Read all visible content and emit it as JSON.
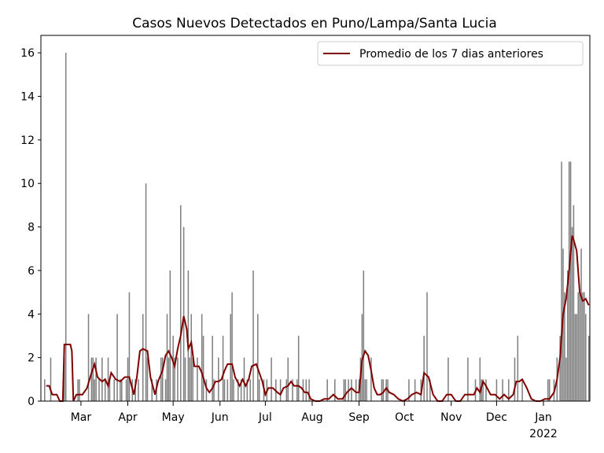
{
  "chart_data": {
    "type": "bar",
    "title": "Casos Nuevos Detectados en Puno/Lampa/Santa Lucia",
    "xlim": [
      32.5,
      395.7
    ],
    "xticks": [
      {
        "value": 59,
        "label": "Mar"
      },
      {
        "value": 90,
        "label": "Apr"
      },
      {
        "value": 120,
        "label": "May"
      },
      {
        "value": 151,
        "label": "Jun"
      },
      {
        "value": 181,
        "label": "Jul"
      },
      {
        "value": 212,
        "label": "Aug"
      },
      {
        "value": 243,
        "label": "Sep"
      },
      {
        "value": 273,
        "label": "Oct"
      },
      {
        "value": 304,
        "label": "Nov"
      },
      {
        "value": 334,
        "label": "Dec"
      },
      {
        "value": 365,
        "label": "Jan"
      }
    ],
    "year_label": "2022",
    "ylim": [
      0,
      16.8
    ],
    "yticks": [
      0,
      2,
      4,
      6,
      8,
      10,
      12,
      14,
      16
    ],
    "legend": "upper right",
    "series": [
      {
        "type": "bar",
        "color": "#808080",
        "x": [
          35,
          39,
          48,
          49,
          57,
          58,
          64,
          66,
          67,
          68,
          69,
          71,
          73,
          75,
          77,
          78,
          81,
          83,
          85,
          86,
          89,
          90,
          91,
          93,
          95,
          97,
          100,
          102,
          103,
          106,
          109,
          112,
          113,
          115,
          116,
          117,
          118,
          120,
          121,
          123,
          125,
          127,
          128,
          130,
          131,
          132,
          133,
          136,
          139,
          140,
          142,
          146,
          147,
          150,
          153,
          154,
          156,
          158,
          159,
          160,
          163,
          165,
          167,
          169,
          171,
          173,
          176,
          177,
          180,
          182,
          185,
          188,
          191,
          195,
          196,
          199,
          202,
          203,
          206,
          208,
          210,
          222,
          227,
          233,
          234,
          236,
          238,
          241,
          243,
          244,
          245,
          246,
          247,
          248,
          251,
          258,
          259,
          261,
          262,
          276,
          280,
          284,
          286,
          288,
          290,
          302,
          315,
          320,
          323,
          324,
          325,
          327,
          334,
          338,
          342,
          346,
          348,
          351,
          368,
          369,
          372,
          374,
          376,
          377,
          378,
          379,
          380,
          381,
          382,
          383,
          384,
          385,
          386,
          387,
          388,
          389,
          390,
          391,
          392,
          393,
          395
        ],
        "values": [
          1,
          2,
          2,
          16,
          1,
          1,
          4,
          2,
          2,
          1,
          2,
          1,
          2,
          1,
          2,
          1,
          1,
          4,
          1,
          1,
          1,
          2,
          5,
          1,
          1,
          1,
          4,
          10,
          2,
          1,
          1,
          2,
          2,
          1,
          4,
          2,
          6,
          3,
          2,
          2,
          9,
          8,
          2,
          6,
          2,
          4,
          2,
          2,
          4,
          3,
          1,
          3,
          1,
          2,
          3,
          1,
          1,
          4,
          5,
          1,
          1,
          1,
          2,
          1,
          1,
          6,
          4,
          1,
          1,
          1,
          2,
          1,
          1,
          1,
          2,
          1,
          1,
          3,
          1,
          1,
          1,
          1,
          1,
          1,
          1,
          1,
          1,
          1,
          1,
          2,
          4,
          6,
          1,
          1,
          2,
          1,
          1,
          1,
          1,
          1,
          1,
          1,
          3,
          5,
          1,
          2,
          2,
          1,
          2,
          1,
          1,
          1,
          1,
          1,
          1,
          2,
          3,
          1,
          1,
          1,
          1,
          2,
          3,
          11,
          7,
          5,
          2,
          6,
          11,
          11,
          8,
          9,
          4,
          4,
          5,
          5,
          7,
          5,
          5,
          4,
          3
        ]
      },
      {
        "type": "line",
        "name": "Promedio de los 7 dias anteriores",
        "color": "#800000",
        "x": [
          36,
          38,
          40,
          43,
          45,
          47,
          48,
          52,
          53,
          54,
          56,
          60,
          63,
          66,
          68,
          70,
          73,
          75,
          77,
          79,
          82,
          85,
          88,
          91,
          94,
          96,
          98,
          100,
          103,
          105,
          108,
          110,
          113,
          115,
          117,
          119,
          121,
          123,
          125,
          127,
          129,
          130,
          132,
          134,
          137,
          139,
          142,
          144,
          146,
          148,
          150,
          152,
          154,
          156,
          159,
          161,
          164,
          166,
          168,
          170,
          172,
          175,
          177,
          179,
          181,
          183,
          186,
          189,
          191,
          193,
          196,
          198,
          200,
          203,
          205,
          207,
          209,
          211,
          214,
          217,
          220,
          223,
          226,
          229,
          232,
          235,
          238,
          241,
          243,
          245,
          247,
          249,
          251,
          253,
          255,
          257,
          259,
          261,
          263,
          266,
          269,
          272,
          275,
          278,
          281,
          284,
          286,
          289,
          292,
          295,
          298,
          301,
          304,
          307,
          310,
          313,
          316,
          319,
          321,
          323,
          325,
          327,
          330,
          333,
          336,
          339,
          342,
          345,
          347,
          349,
          351,
          354,
          357,
          360,
          363,
          366,
          369,
          372,
          374,
          376,
          377,
          378,
          380,
          382,
          384,
          385,
          387,
          389,
          391,
          393,
          395
        ],
        "values": [
          0.7,
          0.7,
          0.3,
          0.3,
          0,
          0,
          2.6,
          2.6,
          2.3,
          0,
          0.3,
          0.3,
          0.6,
          1.3,
          1.7,
          1.1,
          0.9,
          1.0,
          0.7,
          1.3,
          1.0,
          0.9,
          1.1,
          1.1,
          0.3,
          1.1,
          2.3,
          2.4,
          2.3,
          1.1,
          0.3,
          0.9,
          1.4,
          2.1,
          2.3,
          2.0,
          1.6,
          2.4,
          3.0,
          3.9,
          3.3,
          2.4,
          2.7,
          1.6,
          1.6,
          1.3,
          0.6,
          0.4,
          0.6,
          0.9,
          0.9,
          1.0,
          1.4,
          1.7,
          1.7,
          1.1,
          0.7,
          1.0,
          0.7,
          1.0,
          1.6,
          1.7,
          1.3,
          0.9,
          0.3,
          0.6,
          0.6,
          0.4,
          0.3,
          0.6,
          0.7,
          0.9,
          0.7,
          0.7,
          0.6,
          0.4,
          0.4,
          0.1,
          0,
          0,
          0.1,
          0.1,
          0.3,
          0.1,
          0.1,
          0.4,
          0.6,
          0.4,
          0.4,
          1.9,
          2.3,
          2.1,
          1.4,
          0.6,
          0.3,
          0.3,
          0.4,
          0.6,
          0.4,
          0.3,
          0.1,
          0,
          0.1,
          0.3,
          0.4,
          0.3,
          1.3,
          1.1,
          0.3,
          0,
          0,
          0.3,
          0.3,
          0,
          0,
          0.3,
          0.3,
          0.3,
          0.6,
          0.4,
          0.9,
          0.7,
          0.3,
          0.3,
          0.1,
          0.3,
          0.1,
          0.3,
          0.9,
          0.9,
          1.0,
          0.6,
          0.1,
          0,
          0,
          0.1,
          0.1,
          0.4,
          1.0,
          2.0,
          3.0,
          4.0,
          4.7,
          6.0,
          7.6,
          7.4,
          6.9,
          5.0,
          4.6,
          4.7,
          4.4
        ]
      }
    ]
  }
}
